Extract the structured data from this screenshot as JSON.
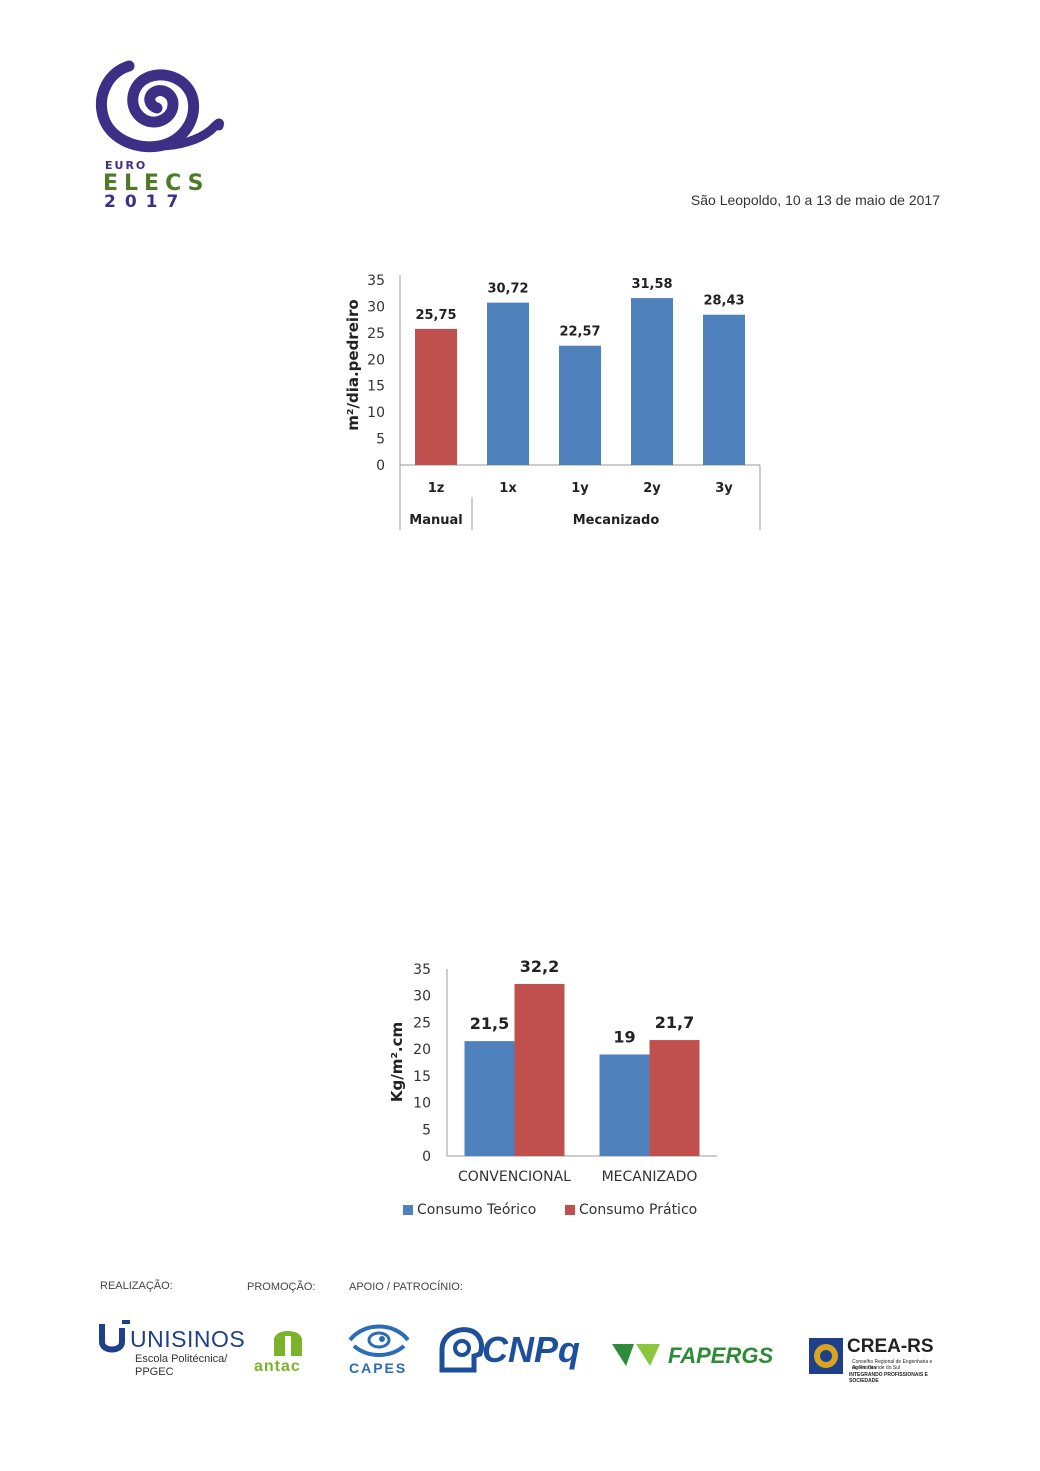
{
  "header": {
    "logo_lines": [
      "EURO",
      "ELECS",
      "2017"
    ],
    "dateline": "São Leopoldo, 10 a 13 de maio de 2017"
  },
  "colors": {
    "blue": "#4f81bd",
    "red": "#c0504d",
    "logo_purple": "#3d2e86",
    "logo_green": "#4e7a2a"
  },
  "chart1": {
    "ylabel": "m²/dia.pedreiro",
    "y_ticks": [
      "0",
      "5",
      "10",
      "15",
      "20",
      "25",
      "30",
      "35"
    ],
    "data_labels": [
      "25,75",
      "30,72",
      "22,57",
      "31,58",
      "28,43"
    ],
    "category_labels": [
      "1z",
      "1x",
      "1y",
      "2y",
      "3y"
    ],
    "group_labels": [
      "Manual",
      "Mecanizado"
    ]
  },
  "chart2": {
    "ylabel": "Kg/m².cm",
    "y_ticks": [
      "0",
      "5",
      "10",
      "15",
      "20",
      "25",
      "30",
      "35"
    ],
    "category_labels": [
      "CONVENCIONAL",
      "MECANIZADO"
    ],
    "data_labels": [
      "21,5",
      "32,2",
      "19",
      "21,7"
    ],
    "legend": [
      "Consumo Teórico",
      "Consumo Prático"
    ]
  },
  "chart_data": [
    {
      "type": "bar",
      "categories": [
        "1z",
        "1x",
        "1y",
        "2y",
        "3y"
      ],
      "groups": [
        {
          "name": "Manual",
          "categories": [
            "1z"
          ]
        },
        {
          "name": "Mecanizado",
          "categories": [
            "1x",
            "1y",
            "2y",
            "3y"
          ]
        }
      ],
      "values": [
        25.75,
        30.72,
        22.57,
        31.58,
        28.43
      ],
      "bar_colors": [
        "#c0504d",
        "#4f81bd",
        "#4f81bd",
        "#4f81bd",
        "#4f81bd"
      ],
      "title": "",
      "xlabel": "",
      "ylabel": "m²/dia.pedreiro",
      "ylim": [
        0,
        35
      ],
      "grid": false
    },
    {
      "type": "bar",
      "categories": [
        "CONVENCIONAL",
        "MECANIZADO"
      ],
      "series": [
        {
          "name": "Consumo Teórico",
          "values": [
            21.5,
            19
          ],
          "color": "#4f81bd"
        },
        {
          "name": "Consumo Prático",
          "values": [
            32.2,
            21.7
          ],
          "color": "#c0504d"
        }
      ],
      "title": "",
      "xlabel": "",
      "ylabel": "Kg/m².cm",
      "ylim": [
        0,
        35
      ],
      "grid": false,
      "legend_position": "bottom"
    }
  ],
  "footer": {
    "labels": [
      "REALIZAÇÃO:",
      "PROMOÇÃO:",
      "APOIO / PATROCÍNIO:"
    ],
    "unisinos": {
      "name": "UNISINOS",
      "sub_lines": [
        "Escola Politécnica/",
        "PPGEC"
      ]
    },
    "antac": "antac",
    "capes": "CAPES",
    "cnpq": "CNPq",
    "fapergs": "FAPERGS",
    "crea": {
      "name": "CREA-RS",
      "sub_lines": [
        "Conselho Regional de Engenharia e Agronomia",
        "do Rio Grande do Sul",
        "INTEGRANDO PROFISSIONAIS E SOCIEDADE"
      ]
    },
    "icons": [
      "euro-elecs-spiral-icon",
      "unisinos-u-icon",
      "antac-dome-icon",
      "capes-eye-icon",
      "cnpq-head-icon",
      "fapergs-leaf-icon",
      "crea-seal-icon"
    ]
  }
}
